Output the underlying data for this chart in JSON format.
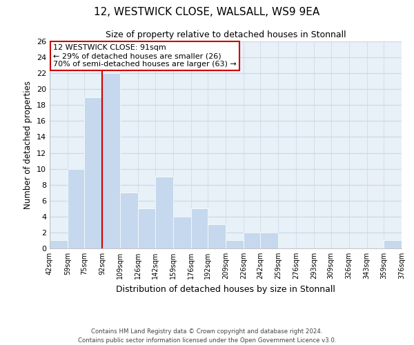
{
  "title": "12, WESTWICK CLOSE, WALSALL, WS9 9EA",
  "subtitle": "Size of property relative to detached houses in Stonnall",
  "xlabel": "Distribution of detached houses by size in Stonnall",
  "ylabel": "Number of detached properties",
  "bin_edges": [
    42,
    59,
    75,
    92,
    109,
    126,
    142,
    159,
    176,
    192,
    209,
    226,
    242,
    259,
    276,
    293,
    309,
    326,
    343,
    359,
    376
  ],
  "bin_counts": [
    1,
    10,
    19,
    22,
    7,
    5,
    9,
    4,
    5,
    3,
    1,
    2,
    2,
    0,
    0,
    0,
    0,
    0,
    0,
    1
  ],
  "bar_color": "#c5d8ed",
  "bar_edge_color": "#ffffff",
  "vline_x": 92,
  "vline_color": "#cc0000",
  "annotation_box_edge_color": "#cc0000",
  "annotation_line1": "12 WESTWICK CLOSE: 91sqm",
  "annotation_line2": "← 29% of detached houses are smaller (26)",
  "annotation_line3": "70% of semi-detached houses are larger (63) →",
  "ylim": [
    0,
    26
  ],
  "yticks": [
    0,
    2,
    4,
    6,
    8,
    10,
    12,
    14,
    16,
    18,
    20,
    22,
    24,
    26
  ],
  "tick_labels": [
    "42sqm",
    "59sqm",
    "75sqm",
    "92sqm",
    "109sqm",
    "126sqm",
    "142sqm",
    "159sqm",
    "176sqm",
    "192sqm",
    "209sqm",
    "226sqm",
    "242sqm",
    "259sqm",
    "276sqm",
    "293sqm",
    "309sqm",
    "326sqm",
    "343sqm",
    "359sqm",
    "376sqm"
  ],
  "footnote1": "Contains HM Land Registry data © Crown copyright and database right 2024.",
  "footnote2": "Contains public sector information licensed under the Open Government Licence v3.0.",
  "background_color": "#ffffff",
  "plot_bg_color": "#e8f0f8",
  "grid_color": "#c8d8e8"
}
